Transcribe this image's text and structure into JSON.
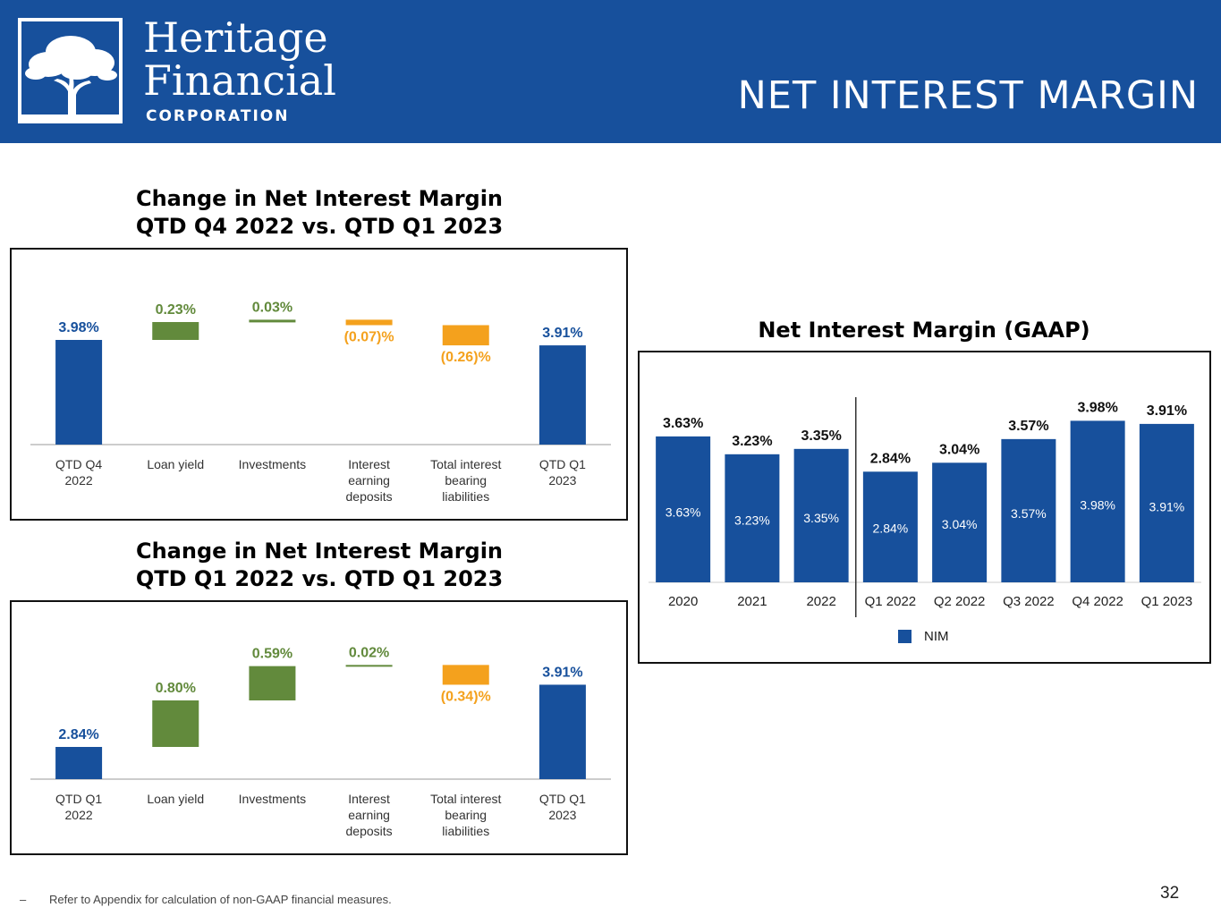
{
  "header": {
    "logo_line1": "Heritage",
    "logo_line2": "Financial",
    "logo_line3": "CORPORATION",
    "page_title": "NET INTEREST MARGIN"
  },
  "colors": {
    "brand_blue": "#17509c",
    "increase_green": "#628a3c",
    "decrease_orange": "#f4a11d",
    "axis_gray": "#999999"
  },
  "chart_data": [
    {
      "type": "bar",
      "subtype": "waterfall",
      "title": [
        "Change in Net Interest Margin",
        "QTD Q4 2022 vs. QTD Q1 2023"
      ],
      "categories": [
        [
          "QTD Q4",
          "2022"
        ],
        [
          "Loan yield"
        ],
        [
          "Investments"
        ],
        [
          "Interest",
          "earning",
          "deposits"
        ],
        [
          "Total interest",
          "bearing",
          "liabilities"
        ],
        [
          "QTD Q1",
          "2023"
        ]
      ],
      "steps": [
        {
          "kind": "total",
          "value": 3.98,
          "label": "3.98%"
        },
        {
          "kind": "increase",
          "value": 0.23,
          "label": "0.23%"
        },
        {
          "kind": "increase",
          "value": 0.03,
          "label": "0.03%"
        },
        {
          "kind": "decrease",
          "value": -0.07,
          "label": "(0.07)%"
        },
        {
          "kind": "decrease",
          "value": -0.26,
          "label": "(0.26)%"
        },
        {
          "kind": "total",
          "value": 3.91,
          "label": "3.91%"
        }
      ],
      "ylim": [
        0,
        4.5
      ]
    },
    {
      "type": "bar",
      "subtype": "waterfall",
      "title": [
        "Change in Net Interest Margin",
        "QTD Q1 2022 vs. QTD Q1 2023"
      ],
      "categories": [
        [
          "QTD Q1",
          "2022"
        ],
        [
          "Loan yield"
        ],
        [
          "Investments"
        ],
        [
          "Interest",
          "earning",
          "deposits"
        ],
        [
          "Total interest",
          "bearing",
          "liabilities"
        ],
        [
          "QTD Q1",
          "2023"
        ]
      ],
      "steps": [
        {
          "kind": "total",
          "value": 2.84,
          "label": "2.84%"
        },
        {
          "kind": "increase",
          "value": 0.8,
          "label": "0.80%"
        },
        {
          "kind": "increase",
          "value": 0.59,
          "label": "0.59%"
        },
        {
          "kind": "increase",
          "value": 0.02,
          "label": "0.02%"
        },
        {
          "kind": "decrease",
          "value": -0.34,
          "label": "(0.34)%"
        },
        {
          "kind": "total",
          "value": 3.91,
          "label": "3.91%"
        }
      ],
      "ylim": [
        0,
        4.5
      ]
    },
    {
      "type": "bar",
      "title": "Net Interest Margin (GAAP)",
      "categories": [
        "2020",
        "2021",
        "2022",
        "Q1 2022",
        "Q2 2022",
        "Q3 2022",
        "Q4 2022",
        "Q1 2023"
      ],
      "series": [
        {
          "name": "NIM",
          "values": [
            3.63,
            3.23,
            3.35,
            2.84,
            3.04,
            3.57,
            3.98,
            3.91
          ]
        }
      ],
      "labels": [
        "3.63%",
        "3.23%",
        "3.35%",
        "2.84%",
        "3.04%",
        "3.57%",
        "3.98%",
        "3.91%"
      ],
      "divider_after_category": "2022",
      "ylim": [
        0,
        4.1
      ],
      "legend": "bottom-center"
    }
  ],
  "footnote": {
    "dash": "–",
    "text": "Refer to Appendix for calculation of non-GAAP financial measures."
  },
  "page_number": "32"
}
